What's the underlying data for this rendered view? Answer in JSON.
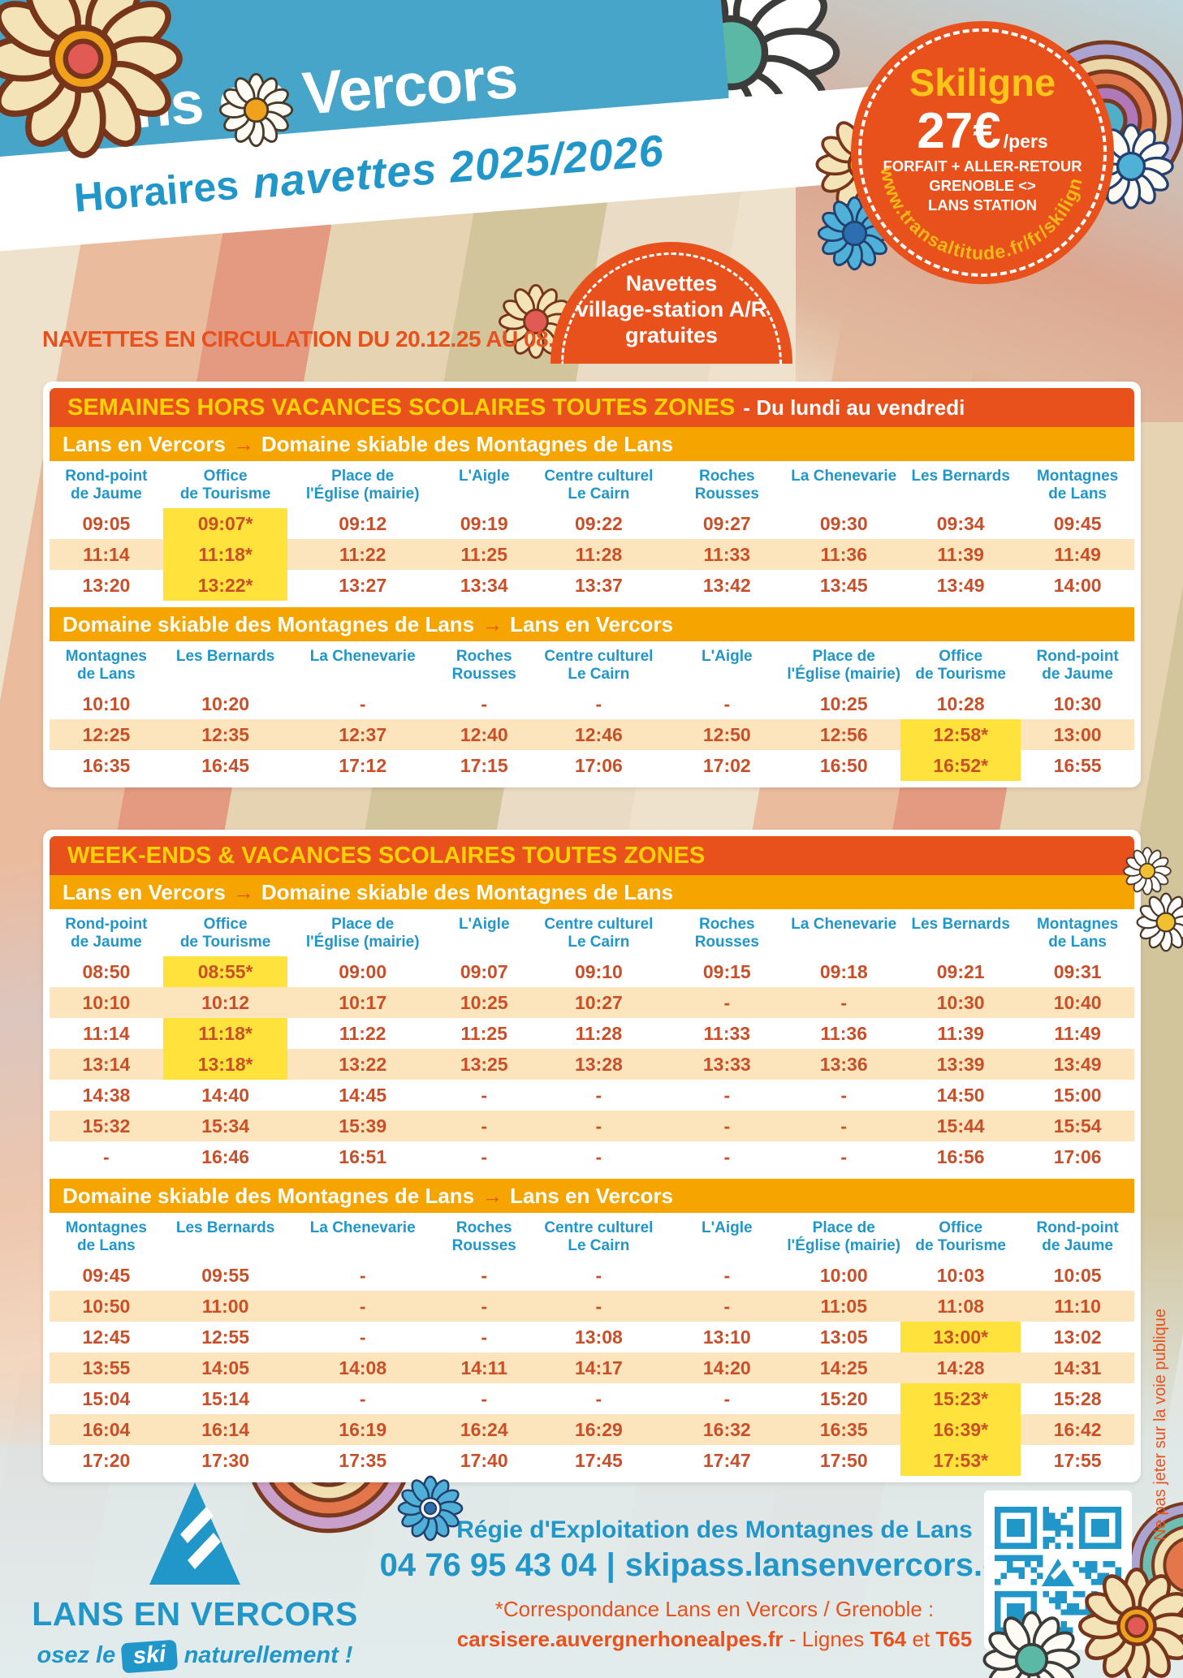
{
  "header": {
    "title": "Lans en Vercors",
    "subtitle_bold": "Horaires",
    "subtitle_script": "navettes 2025/2026"
  },
  "badge": {
    "brand": "Skiligne",
    "price": "27€",
    "per": "/pers",
    "line1": "FORFAIT + ALLER-RETOUR",
    "line2": "GRENOBLE <>",
    "line3": "LANS STATION",
    "url": "www.transaltitude.fr/fr/skiligne"
  },
  "bubble": {
    "line1": "Navettes",
    "line2": "village-station A/R",
    "line3": "gratuites"
  },
  "notice": "NAVETTES EN CIRCULATION DU 20.12.25 AU 08.03.26",
  "stops": {
    "outbound": [
      "Rond-point\nde Jaume",
      "Office\nde Tourisme",
      "Place de\nl'Église (mairie)",
      "L'Aigle",
      "Centre culturel\nLe Cairn",
      "Roches Rousses",
      "La Chenevarie",
      "Les Bernards",
      "Montagnes\nde Lans"
    ],
    "return": [
      "Montagnes\nde Lans",
      "Les Bernards",
      "La Chenevarie",
      "Roches Rousses",
      "Centre culturel\nLe Cairn",
      "L'Aigle",
      "Place de\nl'Église (mairie)",
      "Office\nde Tourisme",
      "Rond-point\nde Jaume"
    ]
  },
  "tables": [
    {
      "title": "SEMAINES HORS VACANCES SCOLAIRES TOUTES ZONES",
      "suffix": "- Du lundi au vendredi",
      "sections": [
        {
          "from": "Lans en Vercors",
          "to": "Domaine skiable des Montagnes de Lans",
          "stops": "outbound",
          "rows": [
            [
              "09:05",
              "09:07*",
              "09:12",
              "09:19",
              "09:22",
              "09:27",
              "09:30",
              "09:34",
              "09:45"
            ],
            [
              "11:14",
              "11:18*",
              "11:22",
              "11:25",
              "11:28",
              "11:33",
              "11:36",
              "11:39",
              "11:49"
            ],
            [
              "13:20",
              "13:22*",
              "13:27",
              "13:34",
              "13:37",
              "13:42",
              "13:45",
              "13:49",
              "14:00"
            ]
          ]
        },
        {
          "from": "Domaine skiable des Montagnes de Lans",
          "to": "Lans en Vercors",
          "stops": "return",
          "rows": [
            [
              "10:10",
              "10:20",
              "-",
              "-",
              "-",
              "-",
              "10:25",
              "10:28",
              "10:30"
            ],
            [
              "12:25",
              "12:35",
              "12:37",
              "12:40",
              "12:46",
              "12:50",
              "12:56",
              "12:58*",
              "13:00"
            ],
            [
              "16:35",
              "16:45",
              "17:12",
              "17:15",
              "17:06",
              "17:02",
              "16:50",
              "16:52*",
              "16:55"
            ]
          ]
        }
      ]
    },
    {
      "title": "WEEK-ENDS & VACANCES SCOLAIRES TOUTES ZONES",
      "suffix": "",
      "sections": [
        {
          "from": "Lans en Vercors",
          "to": "Domaine skiable des Montagnes de Lans",
          "stops": "outbound",
          "rows": [
            [
              "08:50",
              "08:55*",
              "09:00",
              "09:07",
              "09:10",
              "09:15",
              "09:18",
              "09:21",
              "09:31"
            ],
            [
              "10:10",
              "10:12",
              "10:17",
              "10:25",
              "10:27",
              "-",
              "-",
              "10:30",
              "10:40"
            ],
            [
              "11:14",
              "11:18*",
              "11:22",
              "11:25",
              "11:28",
              "11:33",
              "11:36",
              "11:39",
              "11:49"
            ],
            [
              "13:14",
              "13:18*",
              "13:22",
              "13:25",
              "13:28",
              "13:33",
              "13:36",
              "13:39",
              "13:49"
            ],
            [
              "14:38",
              "14:40",
              "14:45",
              "-",
              "-",
              "-",
              "-",
              "14:50",
              "15:00"
            ],
            [
              "15:32",
              "15:34",
              "15:39",
              "-",
              "-",
              "-",
              "-",
              "15:44",
              "15:54"
            ],
            [
              "-",
              "16:46",
              "16:51",
              "-",
              "-",
              "-",
              "-",
              "16:56",
              "17:06"
            ]
          ]
        },
        {
          "from": "Domaine skiable des Montagnes de Lans",
          "to": "Lans en Vercors",
          "stops": "return",
          "rows": [
            [
              "09:45",
              "09:55",
              "-",
              "-",
              "-",
              "-",
              "10:00",
              "10:03",
              "10:05"
            ],
            [
              "10:50",
              "11:00",
              "-",
              "-",
              "-",
              "-",
              "11:05",
              "11:08",
              "11:10"
            ],
            [
              "12:45",
              "12:55",
              "-",
              "-",
              "13:08",
              "13:10",
              "13:05",
              "13:00*",
              "13:02"
            ],
            [
              "13:55",
              "14:05",
              "14:08",
              "14:11",
              "14:17",
              "14:20",
              "14:25",
              "14:28",
              "14:31"
            ],
            [
              "15:04",
              "15:14",
              "-",
              "-",
              "-",
              "-",
              "15:20",
              "15:23*",
              "15:28"
            ],
            [
              "16:04",
              "16:14",
              "16:19",
              "16:24",
              "16:29",
              "16:32",
              "16:35",
              "16:39*",
              "16:42"
            ],
            [
              "17:20",
              "17:30",
              "17:35",
              "17:40",
              "17:45",
              "17:47",
              "17:50",
              "17:53*",
              "17:55"
            ]
          ]
        }
      ]
    }
  ],
  "footer": {
    "company": "Régie d'Exploitation des Montagnes de Lans",
    "phone": "04 76 95 43 04",
    "sep": "|",
    "site": "skipass.lansenvercors.com",
    "note1": "*Correspondance Lans en Vercors / Grenoble :",
    "note2_link": "carsisere.auvergnerhonealpes.fr",
    "note2_mid": " - Lignes ",
    "note2_b1": "T64",
    "note2_and": " et ",
    "note2_b2": "T65"
  },
  "logo": {
    "name": "LANS EN VERCORS",
    "tag_pre": "osez le",
    "tag_ski": "ski",
    "tag_post": "naturellement !"
  },
  "edge_note": "Ne pas jeter sur la voie publique",
  "colors": {
    "orange": "#E8511C",
    "amber": "#F6A400",
    "title_yellow": "#FFD204",
    "highlight_yellow": "#FFE33C",
    "blue": "#2196C8",
    "banner_blue": "#46A5C8",
    "time_text": "#C94F28",
    "row_peach": "#FCE5BC"
  }
}
